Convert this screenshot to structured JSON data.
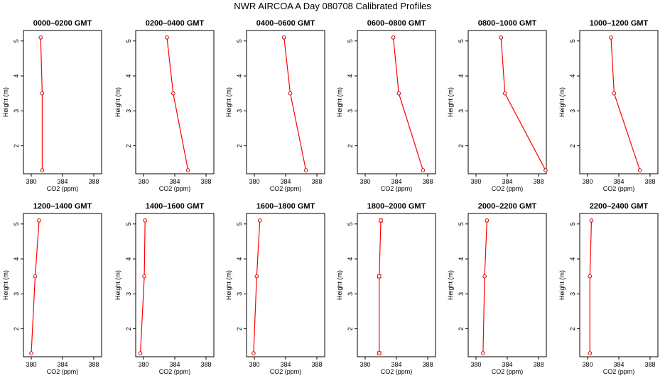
{
  "page_title": "NWR AIRCOA A  Day 080708  Calibrated Profiles",
  "colors": {
    "line": "#ff0000",
    "marker": "#cc0000",
    "axis": "#000000"
  },
  "chart_data": [
    {
      "type": "line",
      "title": "0000–0200 GMT",
      "xlabel": "CO2 (ppm)",
      "ylabel": "Height (m)",
      "xlim": [
        379,
        389
      ],
      "ylim": [
        1.2,
        5.3
      ],
      "xticks": [
        "380",
        "384",
        "388"
      ],
      "yticks": [
        "2",
        "3",
        "4",
        "5"
      ],
      "grid": false,
      "legend": "none",
      "marker": "circle",
      "series": [
        {
          "x": [
            381.2,
            381.4,
            381.4
          ],
          "y": [
            5.1,
            3.5,
            1.3
          ]
        }
      ]
    },
    {
      "type": "line",
      "title": "0200–0400 GMT",
      "xlabel": "CO2 (ppm)",
      "ylabel": "Height (m)",
      "xlim": [
        379,
        389
      ],
      "ylim": [
        1.2,
        5.3
      ],
      "xticks": [
        "380",
        "384",
        "388"
      ],
      "yticks": [
        "2",
        "3",
        "4",
        "5"
      ],
      "grid": false,
      "legend": "none",
      "marker": "circle",
      "series": [
        {
          "x": [
            383.0,
            383.8,
            385.7
          ],
          "y": [
            5.1,
            3.5,
            1.3
          ]
        }
      ]
    },
    {
      "type": "line",
      "title": "0400–0600 GMT",
      "xlabel": "CO2 (ppm)",
      "ylabel": "Height (m)",
      "xlim": [
        379,
        389
      ],
      "ylim": [
        1.2,
        5.3
      ],
      "xticks": [
        "380",
        "384",
        "388"
      ],
      "yticks": [
        "2",
        "3",
        "4",
        "5"
      ],
      "grid": false,
      "legend": "none",
      "marker": "circle",
      "series": [
        {
          "x": [
            383.8,
            384.6,
            386.6
          ],
          "y": [
            5.1,
            3.5,
            1.3
          ]
        }
      ]
    },
    {
      "type": "line",
      "title": "0600–0800 GMT",
      "xlabel": "CO2 (ppm)",
      "ylabel": "Height (m)",
      "xlim": [
        379,
        389
      ],
      "ylim": [
        1.2,
        5.3
      ],
      "xticks": [
        "380",
        "384",
        "388"
      ],
      "yticks": [
        "2",
        "3",
        "4",
        "5"
      ],
      "grid": false,
      "legend": "none",
      "marker": "circle",
      "series": [
        {
          "x": [
            383.6,
            384.3,
            387.4
          ],
          "y": [
            5.1,
            3.5,
            1.3
          ]
        }
      ]
    },
    {
      "type": "line",
      "title": "0800–1000 GMT",
      "xlabel": "CO2 (ppm)",
      "ylabel": "Height (m)",
      "xlim": [
        379,
        389
      ],
      "ylim": [
        1.2,
        5.3
      ],
      "xticks": [
        "380",
        "384",
        "388"
      ],
      "yticks": [
        "2",
        "3",
        "4",
        "5"
      ],
      "grid": false,
      "legend": "none",
      "marker": "circle",
      "series": [
        {
          "x": [
            383.2,
            383.7,
            388.9
          ],
          "y": [
            5.1,
            3.5,
            1.3
          ]
        }
      ]
    },
    {
      "type": "line",
      "title": "1000–1200 GMT",
      "xlabel": "CO2 (ppm)",
      "ylabel": "Height (m)",
      "xlim": [
        379,
        389
      ],
      "ylim": [
        1.2,
        5.3
      ],
      "xticks": [
        "380",
        "384",
        "388"
      ],
      "yticks": [
        "2",
        "3",
        "4",
        "5"
      ],
      "grid": false,
      "legend": "none",
      "marker": "circle",
      "series": [
        {
          "x": [
            383.0,
            383.4,
            386.7
          ],
          "y": [
            5.1,
            3.5,
            1.3
          ]
        }
      ]
    },
    {
      "type": "line",
      "title": "1200–1400 GMT",
      "xlabel": "CO2 (ppm)",
      "ylabel": "Height (m)",
      "xlim": [
        379,
        389
      ],
      "ylim": [
        1.2,
        5.3
      ],
      "xticks": [
        "380",
        "384",
        "388"
      ],
      "yticks": [
        "2",
        "3",
        "4",
        "5"
      ],
      "grid": false,
      "legend": "none",
      "marker": "circle",
      "series": [
        {
          "x": [
            381.0,
            380.5,
            380.0
          ],
          "y": [
            5.1,
            3.5,
            1.3
          ]
        }
      ]
    },
    {
      "type": "line",
      "title": "1400–1600 GMT",
      "xlabel": "CO2 (ppm)",
      "ylabel": "Height (m)",
      "xlim": [
        379,
        389
      ],
      "ylim": [
        1.2,
        5.3
      ],
      "xticks": [
        "380",
        "384",
        "388"
      ],
      "yticks": [
        "2",
        "3",
        "4",
        "5"
      ],
      "grid": false,
      "legend": "none",
      "marker": "circle",
      "series": [
        {
          "x": [
            380.2,
            380.1,
            379.6
          ],
          "y": [
            5.1,
            3.5,
            1.3
          ]
        }
      ]
    },
    {
      "type": "line",
      "title": "1600–1800 GMT",
      "xlabel": "CO2 (ppm)",
      "ylabel": "Height (m)",
      "xlim": [
        379,
        389
      ],
      "ylim": [
        1.2,
        5.3
      ],
      "xticks": [
        "380",
        "384",
        "388"
      ],
      "yticks": [
        "2",
        "3",
        "4",
        "5"
      ],
      "grid": false,
      "legend": "none",
      "marker": "circle",
      "series": [
        {
          "x": [
            380.7,
            380.3,
            379.9
          ],
          "y": [
            5.1,
            3.5,
            1.3
          ]
        }
      ]
    },
    {
      "type": "line",
      "title": "1800–2000 GMT",
      "xlabel": "CO2 (ppm)",
      "ylabel": "Height (m)",
      "xlim": [
        379,
        389
      ],
      "ylim": [
        1.2,
        5.3
      ],
      "xticks": [
        "380",
        "384",
        "388"
      ],
      "yticks": [
        "2",
        "3",
        "4",
        "5"
      ],
      "grid": false,
      "legend": "none",
      "marker": "square",
      "series": [
        {
          "x": [
            382.0,
            381.8,
            381.8
          ],
          "y": [
            5.1,
            3.5,
            1.3
          ]
        }
      ]
    },
    {
      "type": "line",
      "title": "2000–2200 GMT",
      "xlabel": "CO2 (ppm)",
      "ylabel": "Height (m)",
      "xlim": [
        379,
        389
      ],
      "ylim": [
        1.2,
        5.3
      ],
      "xticks": [
        "380",
        "384",
        "388"
      ],
      "yticks": [
        "2",
        "3",
        "4",
        "5"
      ],
      "grid": false,
      "legend": "none",
      "marker": "circle",
      "series": [
        {
          "x": [
            381.4,
            381.1,
            380.9
          ],
          "y": [
            5.1,
            3.5,
            1.3
          ]
        }
      ]
    },
    {
      "type": "line",
      "title": "2200–2400 GMT",
      "xlabel": "CO2 (ppm)",
      "ylabel": "Height (m)",
      "xlim": [
        379,
        389
      ],
      "ylim": [
        1.2,
        5.3
      ],
      "xticks": [
        "380",
        "384",
        "388"
      ],
      "yticks": [
        "2",
        "3",
        "4",
        "5"
      ],
      "grid": false,
      "legend": "none",
      "marker": "circle",
      "series": [
        {
          "x": [
            380.5,
            380.3,
            380.3
          ],
          "y": [
            5.1,
            3.5,
            1.3
          ]
        }
      ]
    }
  ]
}
